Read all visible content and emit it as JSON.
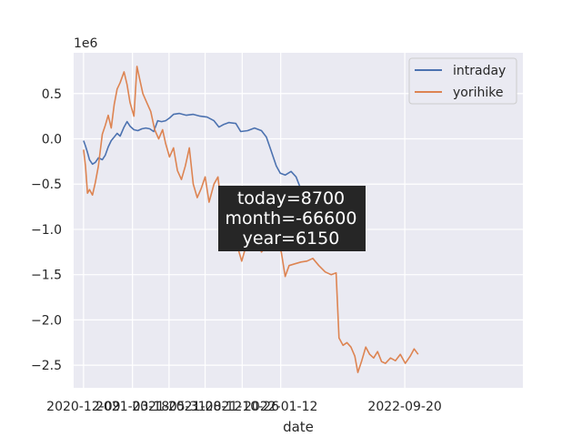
{
  "chart_data": {
    "type": "line",
    "xlabel": "date",
    "ylabel": "",
    "y_scale_label": "1e6",
    "ylim": [
      -2750000,
      950000
    ],
    "xlim": [
      "2020-11-19",
      "2023-05-17"
    ],
    "grid": true,
    "legend_placement": "top-right",
    "x_ticks": [
      "2020-12-09",
      "2021-03-18",
      "2021-05-31",
      "2021-08-12",
      "2021-10-26",
      "2022-01-12",
      "2022-09-20"
    ],
    "x_tick_label_dates": [
      "2020-12-09",
      "2021-03-18",
      "2021-05-31",
      "2021-08-12",
      "2021-10-26",
      "2022-01-12",
      "2022-09-20"
    ],
    "y_ticks": [
      0.5,
      0.0,
      -0.5,
      -1.0,
      -1.5,
      -2.0,
      -2.5
    ],
    "y_tick_labels": [
      "0.5",
      "0.0",
      "−0.5",
      "−1.0",
      "−1.5",
      "−2.0",
      "−2.5"
    ],
    "series": [
      {
        "name": "intraday",
        "color": "#4c72b0",
        "points": [
          [
            "2020-12-09",
            -20000
          ],
          [
            "2020-12-13",
            -80000
          ],
          [
            "2020-12-17",
            -150000
          ],
          [
            "2020-12-21",
            -230000
          ],
          [
            "2020-12-27",
            -280000
          ],
          [
            "2021-01-02",
            -260000
          ],
          [
            "2021-01-08",
            -210000
          ],
          [
            "2021-01-16",
            -230000
          ],
          [
            "2021-01-22",
            -180000
          ],
          [
            "2021-01-28",
            -90000
          ],
          [
            "2021-02-03",
            -20000
          ],
          [
            "2021-02-09",
            20000
          ],
          [
            "2021-02-15",
            60000
          ],
          [
            "2021-02-21",
            30000
          ],
          [
            "2021-03-01",
            130000
          ],
          [
            "2021-03-07",
            190000
          ],
          [
            "2021-03-13",
            140000
          ],
          [
            "2021-03-21",
            100000
          ],
          [
            "2021-03-29",
            90000
          ],
          [
            "2021-04-06",
            110000
          ],
          [
            "2021-04-14",
            120000
          ],
          [
            "2021-04-22",
            110000
          ],
          [
            "2021-04-30",
            80000
          ],
          [
            "2021-05-08",
            200000
          ],
          [
            "2021-05-16",
            190000
          ],
          [
            "2021-05-24",
            200000
          ],
          [
            "2021-06-01",
            230000
          ],
          [
            "2021-06-09",
            270000
          ],
          [
            "2021-06-21",
            280000
          ],
          [
            "2021-07-05",
            260000
          ],
          [
            "2021-07-19",
            270000
          ],
          [
            "2021-08-02",
            250000
          ],
          [
            "2021-08-16",
            240000
          ],
          [
            "2021-08-30",
            200000
          ],
          [
            "2021-09-09",
            130000
          ],
          [
            "2021-09-19",
            160000
          ],
          [
            "2021-09-29",
            180000
          ],
          [
            "2021-10-13",
            170000
          ],
          [
            "2021-10-23",
            80000
          ],
          [
            "2021-11-06",
            90000
          ],
          [
            "2021-11-20",
            120000
          ],
          [
            "2021-12-04",
            90000
          ],
          [
            "2021-12-14",
            20000
          ],
          [
            "2021-12-24",
            -140000
          ],
          [
            "2022-01-03",
            -300000
          ],
          [
            "2022-01-11",
            -380000
          ],
          [
            "2022-01-21",
            -400000
          ],
          [
            "2022-02-02",
            -360000
          ],
          [
            "2022-02-12",
            -420000
          ],
          [
            "2022-02-22",
            -560000
          ],
          [
            "2022-03-04",
            -570000
          ]
        ]
      },
      {
        "name": "yorihike",
        "color": "#dd8452",
        "points": [
          [
            "2020-12-09",
            -120000
          ],
          [
            "2020-12-13",
            -300000
          ],
          [
            "2020-12-17",
            -600000
          ],
          [
            "2020-12-21",
            -560000
          ],
          [
            "2020-12-27",
            -620000
          ],
          [
            "2021-01-02",
            -480000
          ],
          [
            "2021-01-08",
            -300000
          ],
          [
            "2021-01-16",
            50000
          ],
          [
            "2021-01-22",
            150000
          ],
          [
            "2021-01-28",
            260000
          ],
          [
            "2021-02-03",
            120000
          ],
          [
            "2021-02-09",
            380000
          ],
          [
            "2021-02-15",
            550000
          ],
          [
            "2021-02-21",
            620000
          ],
          [
            "2021-03-01",
            740000
          ],
          [
            "2021-03-07",
            600000
          ],
          [
            "2021-03-13",
            400000
          ],
          [
            "2021-03-21",
            250000
          ],
          [
            "2021-03-27",
            800000
          ],
          [
            "2021-04-02",
            650000
          ],
          [
            "2021-04-08",
            500000
          ],
          [
            "2021-04-16",
            400000
          ],
          [
            "2021-04-24",
            300000
          ],
          [
            "2021-05-02",
            100000
          ],
          [
            "2021-05-10",
            0
          ],
          [
            "2021-05-18",
            100000
          ],
          [
            "2021-05-24",
            -50000
          ],
          [
            "2021-06-01",
            -200000
          ],
          [
            "2021-06-09",
            -100000
          ],
          [
            "2021-06-17",
            -350000
          ],
          [
            "2021-06-25",
            -450000
          ],
          [
            "2021-07-03",
            -300000
          ],
          [
            "2021-07-11",
            -100000
          ],
          [
            "2021-07-19",
            -500000
          ],
          [
            "2021-07-27",
            -650000
          ],
          [
            "2021-08-04",
            -550000
          ],
          [
            "2021-08-12",
            -420000
          ],
          [
            "2021-08-20",
            -700000
          ],
          [
            "2021-08-30",
            -500000
          ],
          [
            "2021-09-07",
            -420000
          ],
          [
            "2021-09-15",
            -800000
          ],
          [
            "2021-09-23",
            -1050000
          ],
          [
            "2021-10-01",
            -900000
          ],
          [
            "2021-10-09",
            -1000000
          ],
          [
            "2021-10-17",
            -1200000
          ],
          [
            "2021-10-25",
            -1350000
          ],
          [
            "2021-11-02",
            -1200000
          ],
          [
            "2021-11-10",
            -1100000
          ],
          [
            "2021-11-18",
            -1050000
          ],
          [
            "2021-11-26",
            -1150000
          ],
          [
            "2021-12-04",
            -1250000
          ],
          [
            "2021-12-12",
            -1200000
          ],
          [
            "2021-12-20",
            -1080000
          ],
          [
            "2021-12-28",
            -1100000
          ],
          [
            "2022-01-05",
            -1150000
          ],
          [
            "2022-01-13",
            -1250000
          ],
          [
            "2022-01-21",
            -1520000
          ],
          [
            "2022-01-29",
            -1400000
          ],
          [
            "2022-02-10",
            -1380000
          ],
          [
            "2022-02-22",
            -1360000
          ],
          [
            "2022-03-06",
            -1350000
          ],
          [
            "2022-03-18",
            -1320000
          ],
          [
            "2022-03-30",
            -1400000
          ],
          [
            "2022-04-12",
            -1470000
          ],
          [
            "2022-04-24",
            -1500000
          ],
          [
            "2022-05-04",
            -1480000
          ],
          [
            "2022-05-10",
            -2200000
          ],
          [
            "2022-05-18",
            -2280000
          ],
          [
            "2022-05-26",
            -2250000
          ],
          [
            "2022-06-03",
            -2300000
          ],
          [
            "2022-06-11",
            -2400000
          ],
          [
            "2022-06-17",
            -2580000
          ],
          [
            "2022-06-25",
            -2450000
          ],
          [
            "2022-07-03",
            -2300000
          ],
          [
            "2022-07-11",
            -2380000
          ],
          [
            "2022-07-19",
            -2420000
          ],
          [
            "2022-07-27",
            -2350000
          ],
          [
            "2022-08-04",
            -2460000
          ],
          [
            "2022-08-12",
            -2480000
          ],
          [
            "2022-08-22",
            -2420000
          ],
          [
            "2022-09-01",
            -2450000
          ],
          [
            "2022-09-11",
            -2380000
          ],
          [
            "2022-09-21",
            -2480000
          ],
          [
            "2022-10-01",
            -2400000
          ],
          [
            "2022-10-09",
            -2320000
          ],
          [
            "2022-10-17",
            -2380000
          ]
        ]
      }
    ],
    "annotations": [
      {
        "lines": [
          "today=8700",
          "month=-66600",
          "year=6150"
        ],
        "background": "#262626"
      }
    ]
  }
}
